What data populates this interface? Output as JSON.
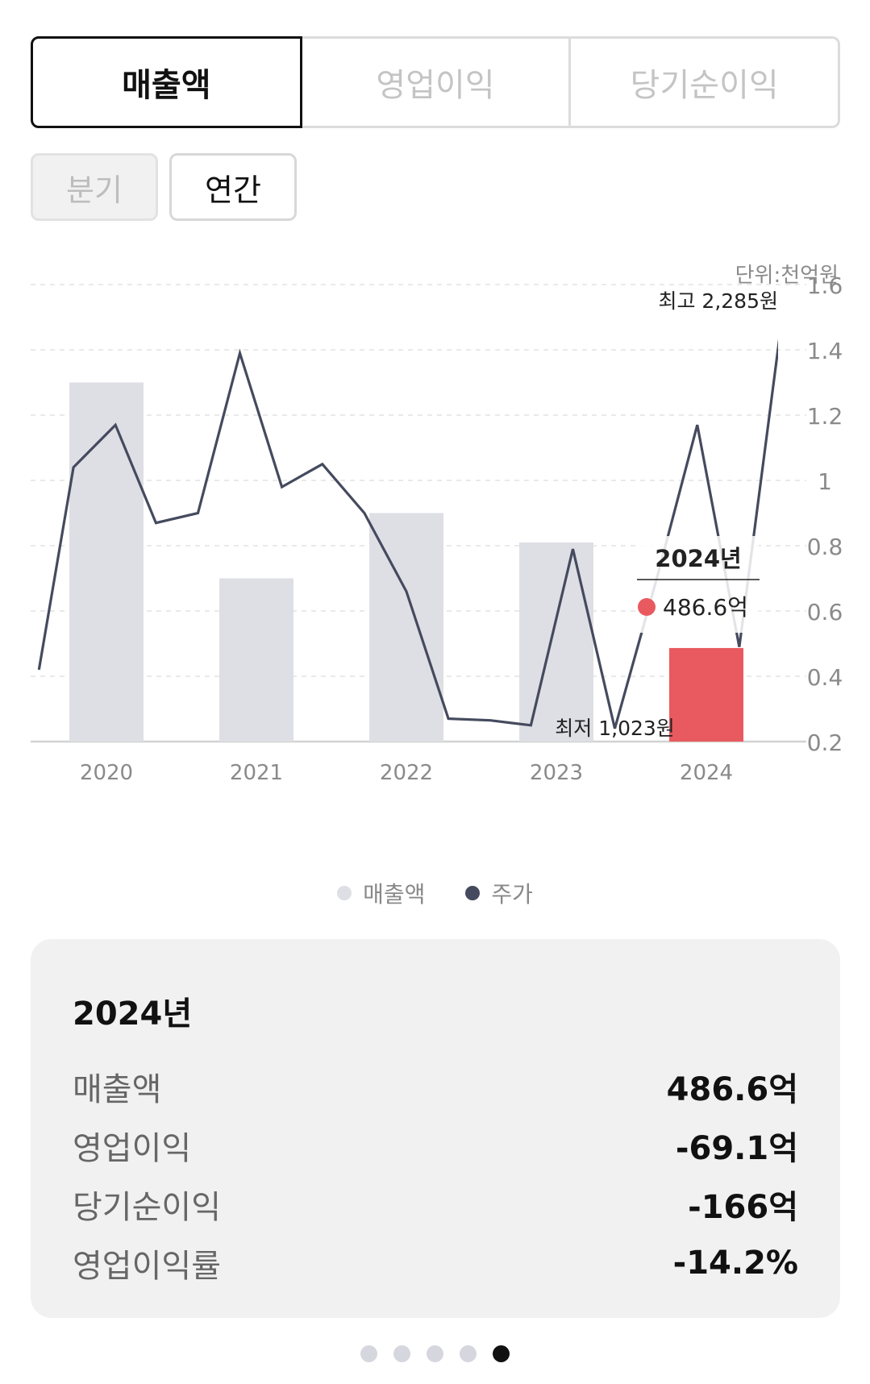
{
  "metric_tabs": [
    {
      "label": "매출액",
      "active": true
    },
    {
      "label": "영업이익",
      "active": false
    },
    {
      "label": "당기순이익",
      "active": false
    }
  ],
  "period_tabs": [
    {
      "label": "분기",
      "active": false
    },
    {
      "label": "연간",
      "active": true
    }
  ],
  "colors": {
    "bar": "#dedfe4",
    "bar_selected": "#e85a5f",
    "line": "#454a5e",
    "grid": "#dcdcdc",
    "axis_text": "#8a8a8a"
  },
  "chart_data": {
    "type": "bar",
    "unit_label": "단위:천억원",
    "categories": [
      "2020",
      "2021",
      "2022",
      "2023",
      "2024"
    ],
    "y_ticks": [
      "1.6",
      "1.4",
      "1.2",
      "1",
      "0.8",
      "0.6",
      "0.4",
      "0.2"
    ],
    "ylim": [
      0.2,
      1.6
    ],
    "series": [
      {
        "values": [
          1.3,
          0.7,
          0.9,
          0.81,
          0.4866
        ]
      }
    ],
    "selected_index": 4,
    "line_series": {
      "values": [
        0.42,
        1.04,
        1.17,
        0.87,
        0.9,
        1.39,
        0.98,
        1.05,
        0.9,
        0.66,
        0.27,
        0.265,
        0.25,
        0.79,
        0.24,
        0.7,
        1.17,
        0.49,
        1.48
      ],
      "positions": [
        -0.45,
        -0.22,
        0.06,
        0.33,
        0.61,
        0.89,
        1.17,
        1.44,
        1.72,
        2.0,
        2.28,
        2.56,
        2.83,
        3.11,
        3.39,
        3.67,
        3.94,
        4.22,
        4.5
      ]
    },
    "max_label": "최고 2,285원",
    "min_label": "최저 1,023원",
    "max_index": 18,
    "min_index": 14,
    "tooltip": {
      "title": "2024년",
      "value": "486.6억"
    },
    "legend": [
      {
        "label": "매출액",
        "color": "#dedfe4"
      },
      {
        "label": "주가",
        "color": "#454a5e"
      }
    ]
  },
  "summary": {
    "title": "2024년",
    "rows": [
      {
        "label": "매출액",
        "value": "486.6억"
      },
      {
        "label": "영업이익",
        "value": "-69.1억"
      },
      {
        "label": "당기순이익",
        "value": "-166억"
      },
      {
        "label": "영업이익률",
        "value": "-14.2%"
      }
    ]
  },
  "pager": {
    "count": 5,
    "active": 4
  }
}
